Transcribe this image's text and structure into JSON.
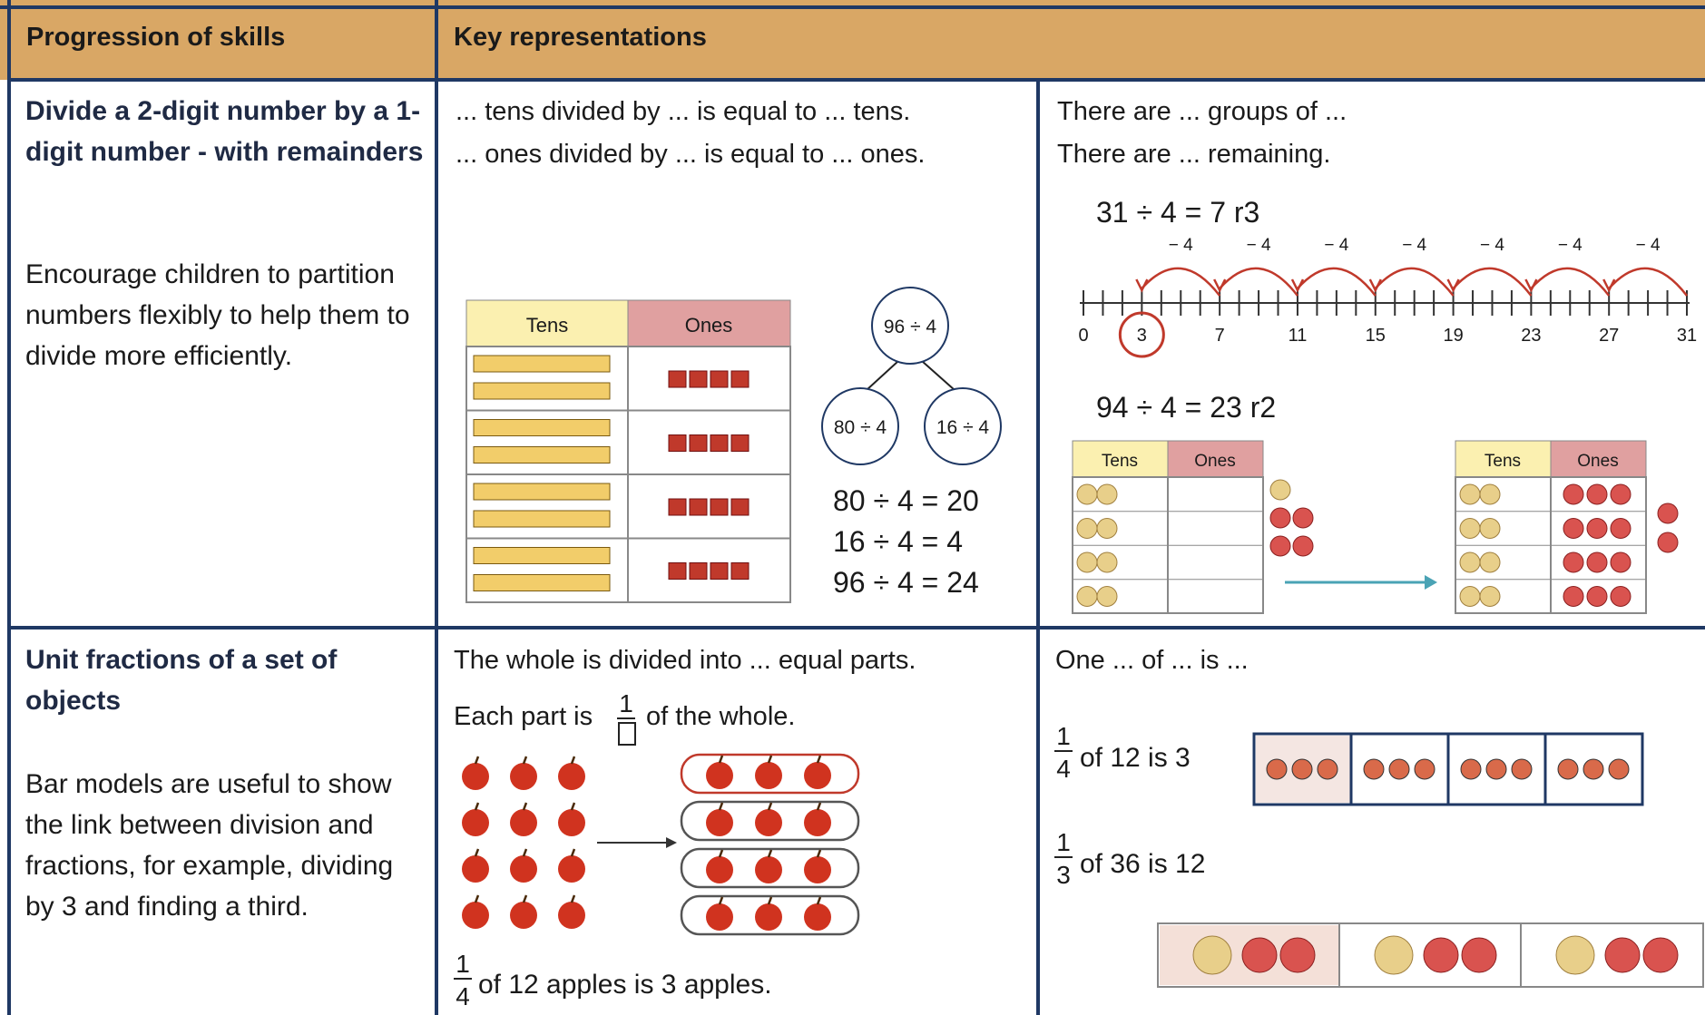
{
  "header": {
    "col1": "Progression of skills",
    "col2": "Key representations"
  },
  "rows": [
    {
      "skill": {
        "title": "Divide a 2-digit number by a 1-digit number - with remainders",
        "text": "Encourage children to partition numbers flexibly to help them to divide more efficiently."
      },
      "representation_1": {
        "sentences": [
          "... tens divided by ... is equal to ... tens.",
          "... ones divided by ... is equal to ... ones."
        ],
        "place_value_table": {
          "headers": [
            "Tens",
            "Ones"
          ]
        },
        "part_whole": {
          "whole": "96 ÷ 4",
          "parts": [
            "80 ÷ 4",
            "16 ÷ 4"
          ]
        },
        "equations": [
          "80 ÷ 4 = 20",
          "16 ÷ 4 = 4",
          "96 ÷ 4 = 24"
        ]
      },
      "representation_2": {
        "sentences": [
          "There are ... groups of ...",
          "There are ... remaining."
        ],
        "number_line": {
          "equation": "31 ÷ 4 = 7 r3",
          "jump_labels": [
            "− 4",
            "− 4",
            "− 4",
            "− 4",
            "− 4",
            "− 4",
            "− 4"
          ],
          "labels": [
            0,
            3,
            7,
            11,
            15,
            19,
            23,
            27,
            31
          ]
        },
        "place_value": {
          "equation": "94 ÷ 4 = 23 r2",
          "before_headers": [
            "Tens",
            "Ones"
          ],
          "after_headers": [
            "Tens",
            "Ones"
          ]
        }
      }
    },
    {
      "skill": {
        "title": "Unit fractions of a set of objects",
        "text": "Bar models are useful to show the link between division and fractions, for example, dividing by 3 and finding a third."
      },
      "representation_1": {
        "sentence": "The whole is divided into ... equal parts.",
        "each_part": {
          "before": "Each part is",
          "numerator": "1",
          "after": "of the whole."
        },
        "statement": {
          "numerator": "1",
          "denominator": "4",
          "text": "of 12 apples is 3 apples."
        }
      },
      "representation_2": {
        "sentence": "One ... of ... is ...",
        "statements": [
          {
            "numerator": "1",
            "denominator": "4",
            "text": "of 12 is 3"
          },
          {
            "numerator": "1",
            "denominator": "3",
            "text": "of 36 is 12"
          }
        ]
      }
    }
  ]
}
